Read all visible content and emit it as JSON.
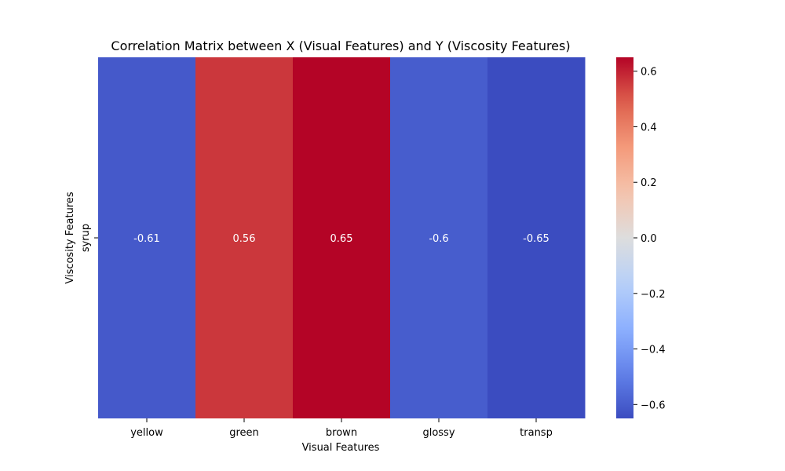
{
  "chart_data": {
    "type": "heatmap",
    "title": "Correlation Matrix between X (Visual Features) and Y (Viscosity Features)",
    "xlabel": "Visual Features",
    "ylabel": "Viscosity Features",
    "x_categories": [
      "yellow",
      "green",
      "brown",
      "glossy",
      "transp"
    ],
    "y_categories": [
      "syrup"
    ],
    "values": [
      [
        -0.61,
        0.56,
        0.65,
        -0.6,
        -0.65
      ]
    ],
    "cell_labels": [
      [
        "-0.61",
        "0.56",
        "0.65",
        "-0.6",
        "-0.65"
      ]
    ],
    "colormap": "coolwarm",
    "vmin": -0.65,
    "vmax": 0.65,
    "colorbar": {
      "ticks": [
        -0.6,
        -0.4,
        -0.2,
        0.0,
        0.2,
        0.4,
        0.6
      ],
      "tick_labels": [
        "−0.6",
        "−0.4",
        "−0.2",
        "0.0",
        "0.2",
        "0.4",
        "0.6"
      ]
    }
  }
}
